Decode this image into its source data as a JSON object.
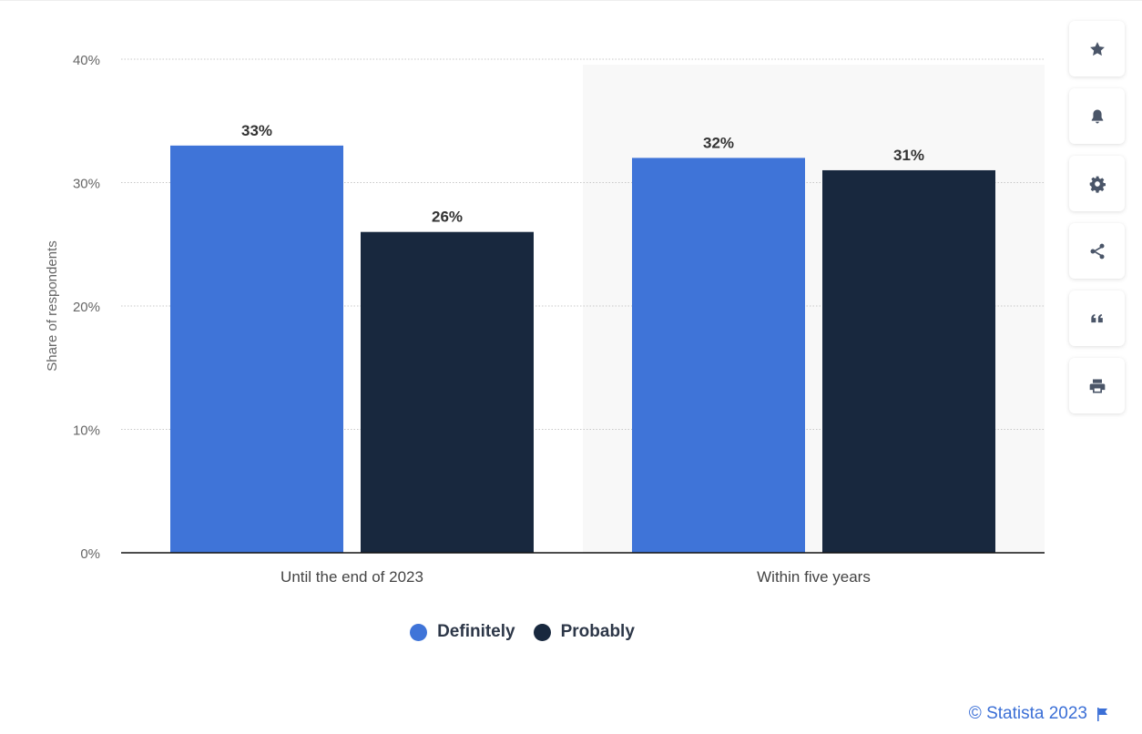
{
  "chart_data": {
    "type": "bar",
    "categories": [
      "Until the end of 2023",
      "Within five years"
    ],
    "series": [
      {
        "name": "Definitely",
        "values": [
          33,
          32
        ],
        "color": "#3f74d8",
        "labels": [
          "33%",
          "32%"
        ]
      },
      {
        "name": "Probably",
        "values": [
          26,
          31
        ],
        "color": "#18283e",
        "labels": [
          "26%",
          "31%"
        ]
      }
    ],
    "xlabel": "",
    "ylabel": "Share of respondents",
    "ylim": [
      0,
      40
    ],
    "yticks": [
      0,
      10,
      20,
      30,
      40
    ],
    "ytick_labels": [
      "0%",
      "10%",
      "20%",
      "30%",
      "40%"
    ],
    "grid": true,
    "legend_position": "bottom-center",
    "highlighted_category": "Within five years"
  },
  "toolbar": {
    "buttons": [
      {
        "icon": "star-icon"
      },
      {
        "icon": "bell-icon"
      },
      {
        "icon": "gear-icon"
      },
      {
        "icon": "share-icon"
      },
      {
        "icon": "quote-icon"
      },
      {
        "icon": "print-icon"
      }
    ]
  },
  "credit": {
    "text": "© Statista 2023",
    "icon": "flag-icon"
  },
  "colors": {
    "accent": "#3b6fd6",
    "axis_text": "#666666",
    "grid": "#c8c8c8",
    "highlight_band": "#f8f8f8"
  }
}
